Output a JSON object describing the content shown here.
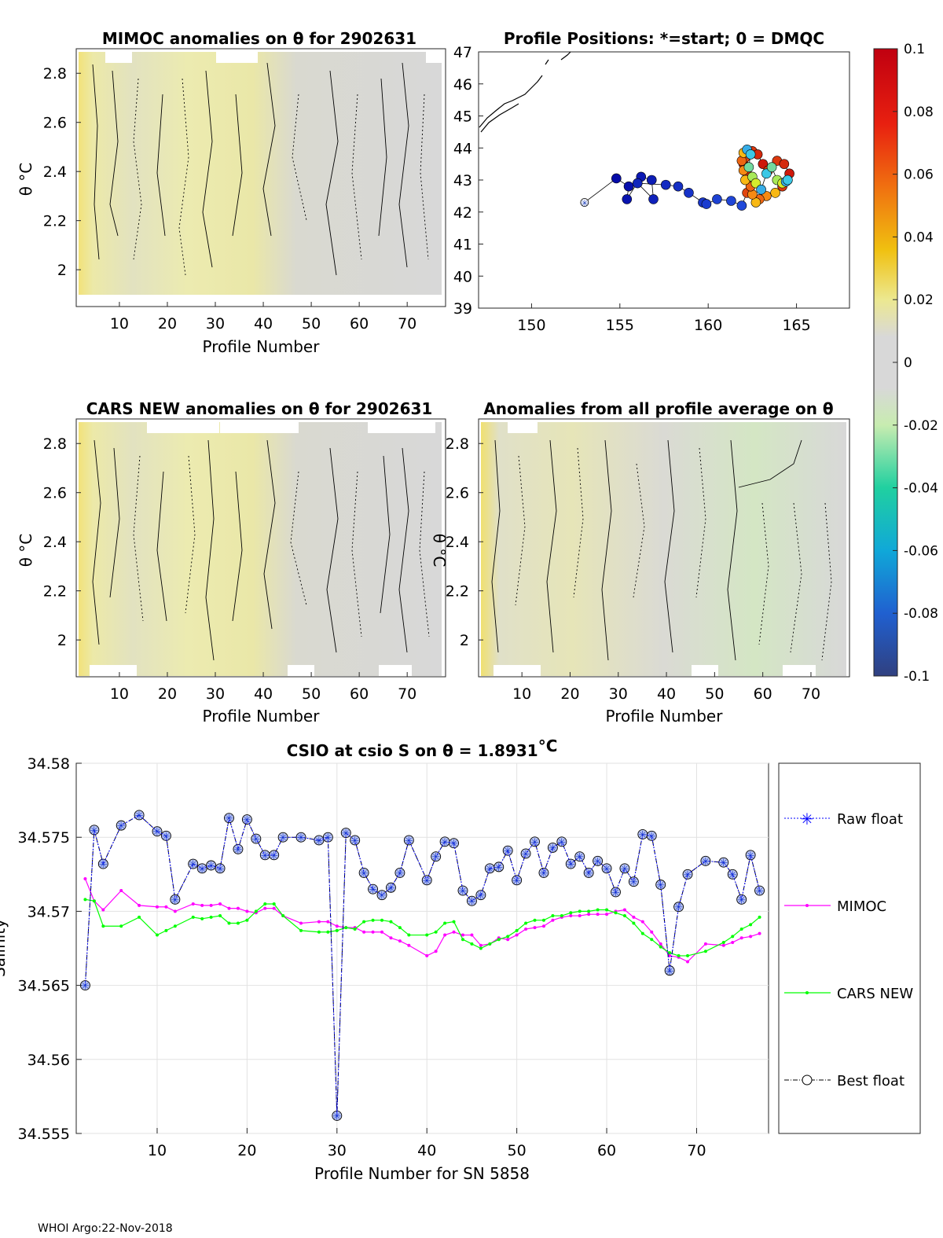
{
  "footer": "WHOI Argo:22-Nov-2018",
  "panels": {
    "mimoc": {
      "title": "MIMOC anomalies on θ  for 2902631",
      "xlabel": "Profile Number",
      "ylabel": "θ °C",
      "xticks": [
        "10",
        "20",
        "30",
        "40",
        "50",
        "60",
        "70"
      ],
      "yticks": [
        "2",
        "2.2",
        "2.4",
        "2.6",
        "2.8"
      ]
    },
    "positions": {
      "title": "Profile Positions: *=start; 0 = DMQC",
      "xticks": [
        "150",
        "155",
        "160",
        "165"
      ],
      "yticks": [
        "39",
        "40",
        "41",
        "42",
        "43",
        "44",
        "45",
        "46",
        "47"
      ]
    },
    "cars": {
      "title": "CARS NEW anomalies on θ for 2902631",
      "xlabel": "Profile Number",
      "ylabel": "θ °C",
      "xticks": [
        "10",
        "20",
        "30",
        "40",
        "50",
        "60",
        "70"
      ],
      "yticks": [
        "2",
        "2.2",
        "2.4",
        "2.6",
        "2.8"
      ]
    },
    "allavg": {
      "title": "Anomalies from all profile average on θ",
      "xlabel": "Profile Number",
      "ylabel": "θ °C",
      "xticks": [
        "10",
        "20",
        "30",
        "40",
        "50",
        "60",
        "70"
      ],
      "yticks": [
        "2",
        "2.2",
        "2.4",
        "2.6",
        "2.8"
      ]
    }
  },
  "colorbar": {
    "ticks": [
      "0.1",
      "0.08",
      "0.06",
      "0.04",
      "0.02",
      "0",
      "-0.02",
      "-0.04",
      "-0.06",
      "-0.08",
      "-0.1"
    ]
  },
  "chart_data": {
    "type": "line",
    "title": "CSIO at csio S on θ = 1.8931",
    "title_unit": "°C",
    "xlabel": "Profile Number for SN 5858",
    "ylabel": "Salinity",
    "xlim": [
      1,
      78
    ],
    "ylim": [
      34.555,
      34.58
    ],
    "xticks": [
      "10",
      "20",
      "30",
      "40",
      "50",
      "60",
      "70"
    ],
    "yticks": [
      "34.555",
      "34.56",
      "34.565",
      "34.57",
      "34.575",
      "34.58"
    ],
    "x": [
      2,
      3,
      4,
      6,
      8,
      10,
      11,
      12,
      14,
      15,
      16,
      17,
      18,
      19,
      20,
      21,
      22,
      23,
      24,
      26,
      28,
      29,
      30,
      31,
      32,
      33,
      34,
      35,
      36,
      37,
      38,
      40,
      41,
      42,
      43,
      44,
      45,
      46,
      47,
      48,
      49,
      50,
      51,
      52,
      53,
      54,
      55,
      56,
      57,
      58,
      59,
      60,
      61,
      62,
      63,
      64,
      65,
      66,
      67,
      68,
      69,
      71,
      73,
      74,
      75,
      76,
      77
    ],
    "series": [
      {
        "name": "Raw float",
        "color": "#0000ff",
        "values": [
          34.565,
          34.5755,
          34.5732,
          34.5758,
          34.5765,
          34.5754,
          34.5751,
          34.5708,
          34.5732,
          34.5729,
          34.5731,
          34.5729,
          34.5763,
          34.5742,
          34.5762,
          34.5749,
          34.5738,
          34.5738,
          34.575,
          34.575,
          34.5748,
          34.575,
          34.5562,
          34.5753,
          34.5748,
          34.5726,
          34.5715,
          34.5711,
          34.5716,
          34.5726,
          34.5748,
          34.5721,
          34.5737,
          34.5747,
          34.5746,
          34.5714,
          34.5707,
          34.5711,
          34.5729,
          34.573,
          34.5741,
          34.5721,
          34.5739,
          34.5747,
          34.5726,
          34.5743,
          34.5747,
          34.5732,
          34.5737,
          34.5726,
          34.5734,
          34.5729,
          34.5713,
          34.5729,
          34.572,
          34.5752,
          34.5751,
          34.5718,
          34.566,
          34.5703,
          34.5725,
          34.5734,
          34.5733,
          34.5725,
          34.5708,
          34.5738,
          34.5714
        ]
      },
      {
        "name": "MIMOC",
        "color": "#ff00ff",
        "values": [
          34.5722,
          34.5707,
          34.5701,
          34.5714,
          34.5704,
          34.5703,
          34.5703,
          34.57,
          34.5705,
          34.5704,
          34.5704,
          34.5705,
          34.5702,
          34.5702,
          34.57,
          34.5699,
          34.5702,
          34.5702,
          34.5697,
          34.5692,
          34.5693,
          34.5693,
          34.569,
          34.5689,
          34.5689,
          34.5686,
          34.5686,
          34.5686,
          34.5682,
          34.568,
          34.5677,
          34.567,
          34.5673,
          34.5684,
          34.5686,
          34.5684,
          34.5684,
          34.5677,
          34.5678,
          34.5682,
          34.5681,
          34.5684,
          34.5688,
          34.5689,
          34.569,
          34.5694,
          34.5696,
          34.5697,
          34.5697,
          34.5698,
          34.5698,
          34.5698,
          34.57,
          34.5701,
          34.5696,
          34.5693,
          34.5686,
          34.5678,
          34.567,
          34.5669,
          34.5666,
          34.5678,
          34.5677,
          34.5679,
          34.5682,
          34.5683,
          34.5685
        ]
      },
      {
        "name": "CARS NEW",
        "color": "#00ff00",
        "values": [
          34.5708,
          34.5707,
          34.569,
          34.569,
          34.5696,
          34.5684,
          34.5687,
          34.569,
          34.5696,
          34.5695,
          34.5696,
          34.5697,
          34.5692,
          34.5692,
          34.5694,
          34.57,
          34.5705,
          34.5705,
          34.5697,
          34.5687,
          34.5686,
          34.5686,
          34.5687,
          34.5689,
          34.5688,
          34.5693,
          34.5694,
          34.5694,
          34.5693,
          34.5689,
          34.5684,
          34.5684,
          34.5686,
          34.5692,
          34.5693,
          34.5681,
          34.5678,
          34.5675,
          34.5678,
          34.5681,
          34.5683,
          34.5687,
          34.5692,
          34.5694,
          34.5694,
          34.5697,
          34.5697,
          34.5699,
          34.57,
          34.57,
          34.5701,
          34.5701,
          34.5699,
          34.5697,
          34.5692,
          34.5685,
          34.5681,
          34.5676,
          34.5672,
          34.567,
          34.567,
          34.5673,
          34.5679,
          34.5683,
          34.5688,
          34.5691,
          34.5696
        ]
      },
      {
        "name": "Best float",
        "color": "#000000",
        "values": [
          34.565,
          34.5755,
          34.5732,
          34.5758,
          34.5765,
          34.5754,
          34.5751,
          34.5708,
          34.5732,
          34.5729,
          34.5731,
          34.5729,
          34.5763,
          34.5742,
          34.5762,
          34.5749,
          34.5738,
          34.5738,
          34.575,
          34.575,
          34.5748,
          34.575,
          34.5562,
          34.5753,
          34.5748,
          34.5726,
          34.5715,
          34.5711,
          34.5716,
          34.5726,
          34.5748,
          34.5721,
          34.5737,
          34.5747,
          34.5746,
          34.5714,
          34.5707,
          34.5711,
          34.5729,
          34.573,
          34.5741,
          34.5721,
          34.5739,
          34.5747,
          34.5726,
          34.5743,
          34.5747,
          34.5732,
          34.5737,
          34.5726,
          34.5734,
          34.5729,
          34.5713,
          34.5729,
          34.572,
          34.5752,
          34.5751,
          34.5718,
          34.566,
          34.5703,
          34.5725,
          34.5734,
          34.5733,
          34.5725,
          34.5708,
          34.5738,
          34.5714
        ]
      }
    ],
    "legend": [
      "Raw float",
      "MIMOC",
      "CARS NEW",
      "Best float"
    ],
    "positions_track": {
      "lon": [
        153.0,
        154.8,
        155.5,
        155.4,
        156.2,
        156.8,
        156.9,
        156.0,
        157.6,
        158.3,
        158.9,
        159.7,
        159.9,
        160.5,
        161.3,
        161.9,
        162.2,
        162.4,
        162.2,
        162.0,
        162.1,
        162.5,
        162.8,
        163.1,
        163.4,
        163.9,
        164.3,
        164.6,
        164.5,
        164.2,
        163.8,
        163.3,
        162.9,
        162.7,
        162.5,
        162.4,
        162.1,
        162.0,
        161.9,
        162.0,
        162.2,
        162.4,
        162.3,
        162.5,
        162.7,
        163.0,
        163.3,
        163.6,
        163.9,
        164.2,
        164.4,
        164.5
      ],
      "lat": [
        42.3,
        43.05,
        42.8,
        42.4,
        43.1,
        43.0,
        42.4,
        42.9,
        42.85,
        42.8,
        42.6,
        42.3,
        42.25,
        42.4,
        42.35,
        42.2,
        42.6,
        42.9,
        43.2,
        43.5,
        43.7,
        43.9,
        43.8,
        43.5,
        43.3,
        43.6,
        43.5,
        43.2,
        43.0,
        42.8,
        42.6,
        42.5,
        42.4,
        42.3,
        42.55,
        42.8,
        43.0,
        43.3,
        43.6,
        43.85,
        43.95,
        43.8,
        43.4,
        43.1,
        42.9,
        42.7,
        43.2,
        43.4,
        43.0,
        42.9,
        42.95,
        43.0
      ]
    }
  }
}
